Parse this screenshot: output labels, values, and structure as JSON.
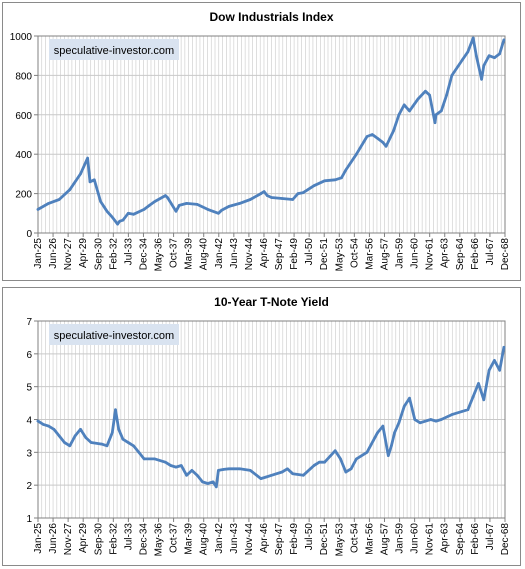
{
  "colors": {
    "line": "#4f81bd",
    "grid": "#c9c9c9",
    "axis": "#808080",
    "watermark_bg": "#d9e3f0"
  },
  "chart_data": [
    {
      "type": "line",
      "title": "Dow Industrials Index",
      "watermark": "speculative-investor.com",
      "ylim": [
        0,
        1000
      ],
      "yticks": [
        "0",
        "200",
        "400",
        "600",
        "800",
        "1000"
      ],
      "ytick_values": [
        0,
        200,
        400,
        600,
        800,
        1000
      ],
      "grid": true,
      "xlim": [
        1925.0,
        1969.0
      ],
      "xtick_labels": [
        "Jan-25",
        "Jun-26",
        "Nov-27",
        "Apr-29",
        "Sep-30",
        "Feb-32",
        "Jul-33",
        "Dec-34",
        "May-36",
        "Oct-37",
        "Mar-39",
        "Aug-40",
        "Jan-42",
        "Jun-43",
        "Nov-44",
        "Apr-46",
        "Sep-47",
        "Feb-49",
        "Jul-50",
        "Dec-51",
        "May-53",
        "Oct-54",
        "Mar-56",
        "Aug-57",
        "Jan-59",
        "Jun-60",
        "Nov-61",
        "Apr-63",
        "Sep-64",
        "Feb-66",
        "Jul-67",
        "Dec-68"
      ],
      "series": [
        {
          "x": [
            1925.0,
            1926.0,
            1927.0,
            1928.0,
            1929.0,
            1929.67,
            1929.9,
            1930.3,
            1930.9,
            1931.5,
            1932.0,
            1932.5,
            1932.7,
            1933.0,
            1933.5,
            1934.0,
            1935.0,
            1935.5,
            1936.0,
            1937.0,
            1937.2,
            1938.0,
            1938.3,
            1939.0,
            1940.0,
            1941.0,
            1942.0,
            1942.3,
            1943.0,
            1944.0,
            1945.0,
            1946.0,
            1946.3,
            1946.6,
            1947.0,
            1948.0,
            1949.0,
            1949.5,
            1950.0,
            1951.0,
            1952.0,
            1953.0,
            1953.6,
            1954.0,
            1955.0,
            1956.0,
            1956.5,
            1957.0,
            1957.5,
            1957.8,
            1958.5,
            1959.0,
            1959.5,
            1960.0,
            1960.8,
            1961.5,
            1961.9,
            1962.4,
            1962.5,
            1963.0,
            1963.5,
            1964.0,
            1965.0,
            1965.5,
            1966.0,
            1966.3,
            1966.8,
            1967.0,
            1967.5,
            1968.0,
            1968.5,
            1968.9
          ],
          "y": [
            120,
            150,
            170,
            220,
            300,
            380,
            260,
            270,
            160,
            110,
            80,
            45,
            60,
            65,
            100,
            95,
            120,
            140,
            160,
            190,
            180,
            110,
            140,
            150,
            145,
            120,
            100,
            115,
            135,
            150,
            170,
            200,
            210,
            190,
            180,
            175,
            170,
            200,
            205,
            240,
            265,
            270,
            280,
            320,
            400,
            490,
            500,
            480,
            460,
            440,
            520,
            600,
            650,
            620,
            680,
            720,
            700,
            560,
            600,
            620,
            700,
            800,
            880,
            920,
            990,
            900,
            780,
            850,
            900,
            890,
            910,
            980
          ]
        }
      ]
    },
    {
      "type": "line",
      "title": "10-Year T-Note Yield",
      "watermark": "speculative-investor.com",
      "ylim": [
        1,
        7
      ],
      "yticks": [
        "1",
        "2",
        "3",
        "4",
        "5",
        "6",
        "7"
      ],
      "ytick_values": [
        1,
        2,
        3,
        4,
        5,
        6,
        7
      ],
      "grid": true,
      "xlim": [
        1925.0,
        1969.0
      ],
      "xtick_labels": [
        "Jan-25",
        "Jun-26",
        "Nov-27",
        "Apr-29",
        "Sep-30",
        "Feb-32",
        "Jul-33",
        "Dec-34",
        "May-36",
        "Oct-37",
        "Mar-39",
        "Aug-40",
        "Jan-42",
        "Jun-43",
        "Nov-44",
        "Apr-46",
        "Sep-47",
        "Feb-49",
        "Jul-50",
        "Dec-51",
        "May-53",
        "Oct-54",
        "Mar-56",
        "Aug-57",
        "Jan-59",
        "Jun-60",
        "Nov-61",
        "Apr-63",
        "Sep-64",
        "Feb-66",
        "Jul-67",
        "Dec-68"
      ],
      "series": [
        {
          "x": [
            1925.0,
            1925.5,
            1926.0,
            1926.5,
            1927.0,
            1927.5,
            1928.0,
            1928.5,
            1929.0,
            1929.5,
            1930.0,
            1931.0,
            1931.5,
            1932.0,
            1932.3,
            1932.6,
            1933.0,
            1933.5,
            1934.0,
            1934.5,
            1935.0,
            1936.0,
            1937.0,
            1937.5,
            1938.0,
            1938.5,
            1939.0,
            1939.5,
            1940.0,
            1940.5,
            1941.0,
            1941.5,
            1941.8,
            1942.0,
            1942.5,
            1943.0,
            1944.0,
            1945.0,
            1946.0,
            1946.5,
            1947.0,
            1948.0,
            1948.5,
            1949.0,
            1950.0,
            1951.0,
            1951.5,
            1952.0,
            1953.0,
            1953.5,
            1954.0,
            1954.5,
            1955.0,
            1956.0,
            1957.0,
            1957.5,
            1958.0,
            1958.3,
            1958.6,
            1959.0,
            1959.5,
            1960.0,
            1960.5,
            1961.0,
            1962.0,
            1962.5,
            1963.0,
            1964.0,
            1965.0,
            1965.5,
            1966.0,
            1966.5,
            1967.0,
            1967.5,
            1968.0,
            1968.5,
            1968.9
          ],
          "y": [
            3.95,
            3.85,
            3.8,
            3.7,
            3.5,
            3.3,
            3.2,
            3.5,
            3.7,
            3.45,
            3.3,
            3.25,
            3.2,
            3.6,
            4.3,
            3.7,
            3.4,
            3.3,
            3.2,
            3.0,
            2.8,
            2.8,
            2.7,
            2.6,
            2.55,
            2.6,
            2.3,
            2.45,
            2.3,
            2.1,
            2.05,
            2.1,
            1.95,
            2.45,
            2.48,
            2.5,
            2.5,
            2.45,
            2.2,
            2.25,
            2.3,
            2.4,
            2.5,
            2.35,
            2.3,
            2.6,
            2.7,
            2.7,
            3.05,
            2.8,
            2.4,
            2.5,
            2.8,
            3.0,
            3.6,
            3.8,
            2.9,
            3.2,
            3.6,
            3.9,
            4.4,
            4.65,
            4.0,
            3.9,
            4.0,
            3.95,
            4.0,
            4.15,
            4.25,
            4.3,
            4.7,
            5.1,
            4.6,
            5.5,
            5.8,
            5.5,
            6.2
          ]
        }
      ]
    }
  ]
}
